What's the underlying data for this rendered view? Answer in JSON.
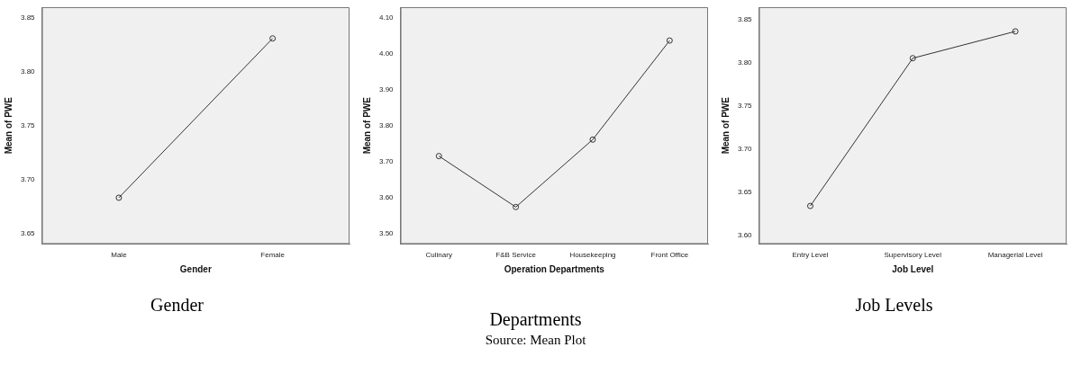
{
  "chart_data": [
    {
      "type": "line",
      "title": "Gender",
      "xlabel": "Gender",
      "ylabel": "Mean of PWE",
      "categories": [
        "Male",
        "Female"
      ],
      "series": [
        {
          "color": "#333333",
          "values": [
            3.683,
            3.831
          ]
        }
      ],
      "ylim": [
        3.64,
        3.86
      ],
      "yticks": [
        {
          "value": 3.65,
          "label": "3.65"
        },
        {
          "value": 3.7,
          "label": "3.70"
        },
        {
          "value": 3.75,
          "label": "3.75"
        },
        {
          "value": 3.8,
          "label": "3.80"
        },
        {
          "value": 3.85,
          "label": "3.85"
        }
      ],
      "marker": "circle",
      "grid": false,
      "legend": false
    },
    {
      "type": "line",
      "title": "Departments",
      "xlabel": "Operation Departments",
      "ylabel": "Mean of PWE",
      "categories": [
        "Culinary",
        "F&B Service",
        "Housekeeping",
        "Front Office"
      ],
      "series": [
        {
          "color": "#333333",
          "values": [
            3.715,
            3.573,
            3.761,
            4.037
          ]
        }
      ],
      "ylim": [
        3.47,
        4.13
      ],
      "yticks": [
        {
          "value": 3.5,
          "label": "3.50"
        },
        {
          "value": 3.6,
          "label": "3.60"
        },
        {
          "value": 3.7,
          "label": "3.70"
        },
        {
          "value": 3.8,
          "label": "3.80"
        },
        {
          "value": 3.9,
          "label": "3.90"
        },
        {
          "value": 4.0,
          "label": "4.00"
        },
        {
          "value": 4.1,
          "label": "4.10"
        }
      ],
      "marker": "circle",
      "grid": false,
      "legend": false,
      "annotations": [
        "Source: Mean Plot"
      ]
    },
    {
      "type": "line",
      "title": "Job Levels",
      "xlabel": "Job Level",
      "ylabel": "Mean of PWE",
      "categories": [
        "Entry Level",
        "Supervisory Level",
        "Managerial Level"
      ],
      "series": [
        {
          "color": "#333333",
          "values": [
            3.634,
            3.805,
            3.836
          ]
        }
      ],
      "ylim": [
        3.59,
        3.864
      ],
      "yticks": [
        {
          "value": 3.6,
          "label": "3.60"
        },
        {
          "value": 3.65,
          "label": "3.65"
        },
        {
          "value": 3.7,
          "label": "3.70"
        },
        {
          "value": 3.75,
          "label": "3.75"
        },
        {
          "value": 3.8,
          "label": "3.80"
        },
        {
          "value": 3.85,
          "label": "3.85"
        }
      ],
      "marker": "circle",
      "grid": false,
      "legend": false
    }
  ]
}
